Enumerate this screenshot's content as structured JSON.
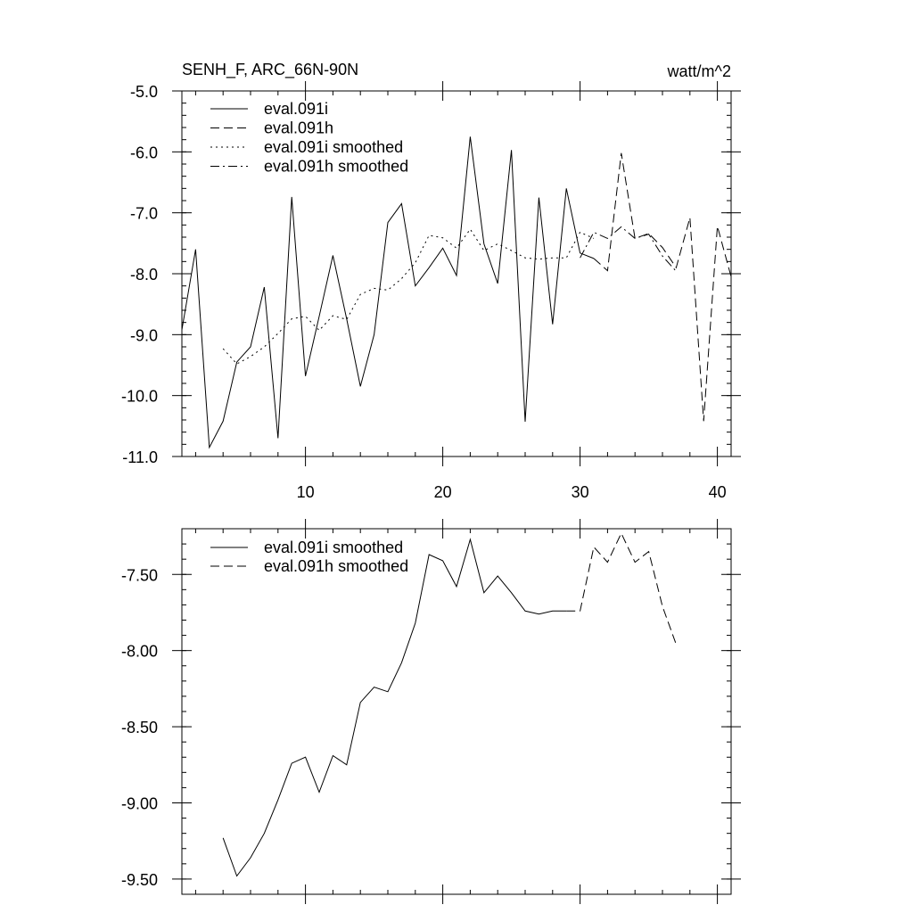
{
  "chart_data": [
    {
      "type": "line",
      "title": "SENH_F, ARC_66N-90N",
      "units": "watt/m^2",
      "xlim": [
        1,
        41
      ],
      "ylim": [
        -11.0,
        -5.0
      ],
      "x_ticks": [
        10,
        20,
        30,
        40
      ],
      "x_tick_labels": [
        "10",
        "20",
        "30",
        "40"
      ],
      "y_ticks": [
        -5.0,
        -6.0,
        -7.0,
        -8.0,
        -9.0,
        -10.0,
        -11.0
      ],
      "y_tick_labels": [
        "-5.0",
        "-6.0",
        "-7.0",
        "-8.0",
        "-9.0",
        "-10.0",
        "-11.0"
      ],
      "legend_position": "top-left",
      "series": [
        {
          "name": "eval.091i",
          "style": "solid",
          "x": [
            1,
            2,
            3,
            4,
            5,
            6,
            7,
            8,
            9,
            10,
            11,
            12,
            13,
            14,
            15,
            16,
            17,
            18,
            19,
            20,
            21,
            22,
            23,
            24,
            25,
            26,
            27,
            28,
            29,
            30,
            31
          ],
          "values": [
            -8.92,
            -7.6,
            -10.85,
            -10.42,
            -9.45,
            -9.2,
            -8.22,
            -10.7,
            -6.74,
            -9.68,
            -8.7,
            -7.7,
            -8.74,
            -9.85,
            -9.0,
            -7.16,
            -6.85,
            -8.2,
            -7.9,
            -7.58,
            -8.03,
            -5.75,
            -7.51,
            -8.16,
            -5.97,
            -10.43,
            -6.75,
            -8.83,
            -6.6,
            -7.66,
            -7.75
          ]
        },
        {
          "name": "eval.091h",
          "style": "dashed",
          "x": [
            31,
            32,
            33,
            34,
            35,
            36,
            37,
            38,
            39,
            40,
            41
          ],
          "values": [
            -7.75,
            -7.95,
            -6.02,
            -7.42,
            -7.34,
            -7.57,
            -7.9,
            -7.08,
            -10.42,
            -7.22,
            -8.05
          ]
        },
        {
          "name": "eval.091i smoothed",
          "style": "dotted",
          "x": [
            4,
            5,
            6,
            7,
            8,
            9,
            10,
            11,
            12,
            13,
            14,
            15,
            16,
            17,
            18,
            19,
            20,
            21,
            22,
            23,
            24,
            25,
            26,
            27,
            28,
            29,
            30,
            31
          ],
          "values": [
            -9.23,
            -9.48,
            -9.36,
            -9.2,
            -8.98,
            -8.74,
            -8.7,
            -8.93,
            -8.69,
            -8.75,
            -8.34,
            -8.24,
            -8.27,
            -8.08,
            -7.82,
            -7.37,
            -7.41,
            -7.58,
            -7.27,
            -7.62,
            -7.51,
            -7.62,
            -7.74,
            -7.76,
            -7.74,
            -7.74,
            -7.32,
            -7.42
          ]
        },
        {
          "name": "eval.091h smoothed",
          "style": "dashdot",
          "x": [
            30,
            31,
            32,
            33,
            34,
            35,
            36,
            37
          ],
          "values": [
            -7.74,
            -7.32,
            -7.42,
            -7.23,
            -7.42,
            -7.35,
            -7.71,
            -7.96
          ]
        }
      ]
    },
    {
      "type": "line",
      "title": "",
      "xlim": [
        1,
        41
      ],
      "ylim": [
        -9.6,
        -7.2
      ],
      "x_ticks": [
        10,
        20,
        30,
        40
      ],
      "y_ticks": [
        -7.5,
        -8.0,
        -8.5,
        -9.0,
        -9.5
      ],
      "y_tick_labels": [
        "-7.50",
        "-8.00",
        "-8.50",
        "-9.00",
        "-9.50"
      ],
      "legend_position": "top-left",
      "series": [
        {
          "name": "eval.091i smoothed",
          "style": "solid",
          "x": [
            4,
            5,
            6,
            7,
            8,
            9,
            10,
            11,
            12,
            13,
            14,
            15,
            16,
            17,
            18,
            19,
            20,
            21,
            22,
            23,
            24,
            25,
            26,
            27,
            28,
            29
          ],
          "values": [
            -9.23,
            -9.48,
            -9.36,
            -9.2,
            -8.98,
            -8.74,
            -8.7,
            -8.93,
            -8.69,
            -8.75,
            -8.34,
            -8.24,
            -8.27,
            -8.08,
            -7.82,
            -7.37,
            -7.41,
            -7.58,
            -7.27,
            -7.62,
            -7.51,
            -7.62,
            -7.74,
            -7.76,
            -7.74,
            -7.74
          ]
        },
        {
          "name": "eval.091h smoothed",
          "style": "dashed",
          "x": [
            29,
            30,
            31,
            32,
            33,
            34,
            35,
            36,
            37
          ],
          "values": [
            -7.74,
            -7.74,
            -7.32,
            -7.42,
            -7.23,
            -7.42,
            -7.35,
            -7.71,
            -7.96
          ]
        }
      ]
    }
  ]
}
